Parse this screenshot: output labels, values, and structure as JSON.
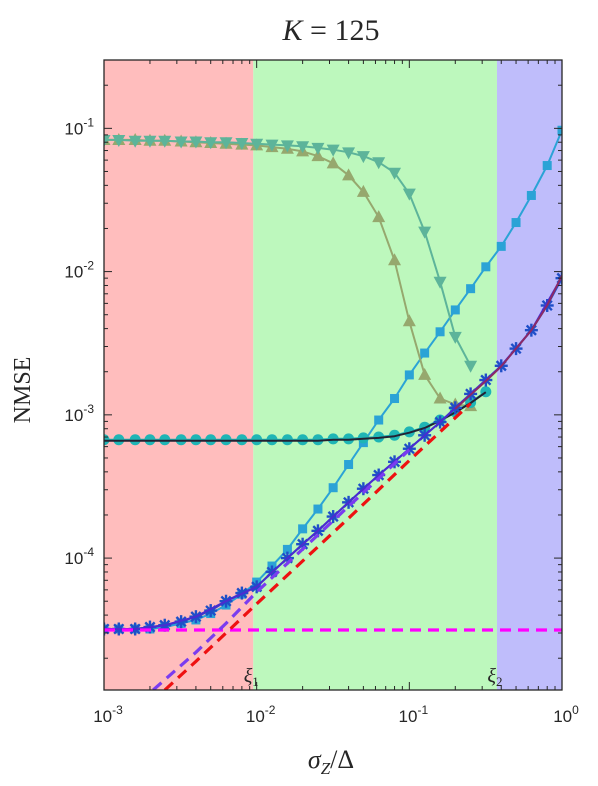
{
  "chart_data": {
    "type": "line",
    "title": "K = 125",
    "xlabel": "σZ/Δ",
    "ylabel": "NMSE",
    "x_scale": "log",
    "y_scale": "log",
    "xlim": [
      0.001,
      1
    ],
    "ylim": [
      1.2e-05,
      0.3
    ],
    "x_ticks": [
      {
        "value": 0.001,
        "base": "10",
        "exp": "-3"
      },
      {
        "value": 0.01,
        "base": "10",
        "exp": "-2"
      },
      {
        "value": 0.1,
        "base": "10",
        "exp": "-1"
      },
      {
        "value": 1,
        "base": "10",
        "exp": "0"
      }
    ],
    "y_ticks": [
      {
        "value": 0.0001,
        "base": "10",
        "exp": "-4"
      },
      {
        "value": 0.001,
        "base": "10",
        "exp": "-3"
      },
      {
        "value": 0.01,
        "base": "10",
        "exp": "-2"
      },
      {
        "value": 0.1,
        "base": "10",
        "exp": "-1"
      }
    ],
    "regions": [
      {
        "from": 0.001,
        "to": 0.0095,
        "color": "#ffbdbd"
      },
      {
        "from": 0.0095,
        "to": 0.375,
        "color": "#bdf8bd"
      },
      {
        "from": 0.375,
        "to": 1,
        "color": "#bfbdfb"
      }
    ],
    "annotations": [
      {
        "text": "ξ",
        "sub": "1",
        "x": 0.0095
      },
      {
        "text": "ξ",
        "sub": "2",
        "x": 0.375
      }
    ],
    "grid": false,
    "legend": "none",
    "series": [
      {
        "color": "#2ba3d6",
        "marker": "square",
        "line": "solid",
        "x": [
          0.001,
          0.00125,
          0.0016,
          0.002,
          0.0025,
          0.0032,
          0.004,
          0.005,
          0.0063,
          0.008,
          0.01,
          0.0126,
          0.0159,
          0.02,
          0.0252,
          0.0317,
          0.04,
          0.05,
          0.063,
          0.08,
          0.1,
          0.126,
          0.159,
          0.2,
          0.252,
          0.317,
          0.4,
          0.5,
          0.63,
          0.8,
          1.0
        ],
        "y": [
          3.2e-05,
          3.2e-05,
          3.2e-05,
          3.2e-05,
          3.3e-05,
          3.5e-05,
          3.7e-05,
          4.1e-05,
          4.7e-05,
          5.6e-05,
          6.8e-05,
          8.8e-05,
          0.000115,
          0.00016,
          0.00022,
          0.00031,
          0.00045,
          0.00064,
          0.00092,
          0.0013,
          0.0019,
          0.0027,
          0.0038,
          0.0054,
          0.0076,
          0.0108,
          0.015,
          0.022,
          0.034,
          0.055,
          0.097
        ]
      },
      {
        "color": "#96a86e",
        "marker": "triangle-up",
        "line": "solid",
        "x": [
          0.001,
          0.00125,
          0.0016,
          0.002,
          0.0025,
          0.0032,
          0.004,
          0.005,
          0.0063,
          0.008,
          0.01,
          0.0126,
          0.0159,
          0.02,
          0.0252,
          0.0317,
          0.04,
          0.05,
          0.063,
          0.08,
          0.1,
          0.126,
          0.159,
          0.2,
          0.252
        ],
        "y": [
          0.083,
          0.083,
          0.083,
          0.082,
          0.082,
          0.081,
          0.08,
          0.079,
          0.078,
          0.077,
          0.076,
          0.074,
          0.072,
          0.069,
          0.064,
          0.057,
          0.047,
          0.036,
          0.024,
          0.012,
          0.0045,
          0.0019,
          0.0013,
          0.00118,
          0.00115
        ]
      },
      {
        "color": "#5db49a",
        "marker": "triangle-down",
        "line": "solid",
        "x": [
          0.001,
          0.00125,
          0.0016,
          0.002,
          0.0025,
          0.0032,
          0.004,
          0.005,
          0.0063,
          0.008,
          0.01,
          0.0126,
          0.0159,
          0.02,
          0.0252,
          0.0317,
          0.04,
          0.05,
          0.063,
          0.08,
          0.1,
          0.126,
          0.159,
          0.2,
          0.252
        ],
        "y": [
          0.083,
          0.083,
          0.082,
          0.082,
          0.082,
          0.081,
          0.081,
          0.08,
          0.08,
          0.079,
          0.078,
          0.077,
          0.076,
          0.075,
          0.073,
          0.071,
          0.068,
          0.064,
          0.058,
          0.049,
          0.035,
          0.019,
          0.0085,
          0.0035,
          0.0022
        ]
      },
      {
        "color": "#1fb5b5",
        "marker": "circle",
        "line": "solid",
        "x": [
          0.001,
          0.00125,
          0.0016,
          0.002,
          0.0025,
          0.0032,
          0.004,
          0.005,
          0.0063,
          0.008,
          0.01,
          0.0126,
          0.0159,
          0.02,
          0.0252,
          0.0317,
          0.04,
          0.05,
          0.063,
          0.08,
          0.1,
          0.126,
          0.159,
          0.2,
          0.252,
          0.317
        ],
        "y": [
          0.00067,
          0.00067,
          0.00067,
          0.00067,
          0.00067,
          0.00067,
          0.00067,
          0.00067,
          0.00067,
          0.00067,
          0.00067,
          0.00067,
          0.00067,
          0.00067,
          0.00067,
          0.00068,
          0.00068,
          0.00069,
          0.0007,
          0.00072,
          0.00076,
          0.00082,
          0.00092,
          0.00105,
          0.00122,
          0.00145
        ]
      },
      {
        "color": "#222233",
        "marker": "none",
        "line": "solid",
        "x": [
          0.001,
          0.00125,
          0.0016,
          0.002,
          0.0025,
          0.0032,
          0.004,
          0.005,
          0.0063,
          0.008,
          0.01,
          0.0126,
          0.0159,
          0.02,
          0.0252,
          0.0317,
          0.04,
          0.05,
          0.063,
          0.08,
          0.1,
          0.126,
          0.159,
          0.2,
          0.252,
          0.317
        ],
        "y": [
          0.00066,
          0.00066,
          0.00066,
          0.00066,
          0.00066,
          0.00066,
          0.00066,
          0.00066,
          0.00066,
          0.00066,
          0.00066,
          0.00066,
          0.00066,
          0.00066,
          0.00066,
          0.00067,
          0.00067,
          0.00068,
          0.00069,
          0.00071,
          0.00075,
          0.00081,
          0.00091,
          0.00104,
          0.00121,
          0.00144
        ]
      },
      {
        "color": "#1f4fc8",
        "marker": "star",
        "line": "solid",
        "x": [
          0.001,
          0.00125,
          0.0016,
          0.002,
          0.0025,
          0.0032,
          0.004,
          0.005,
          0.0063,
          0.008,
          0.01,
          0.0126,
          0.0159,
          0.02,
          0.0252,
          0.0317,
          0.04,
          0.05,
          0.063,
          0.08,
          0.1,
          0.126,
          0.159,
          0.2,
          0.252,
          0.317,
          0.4,
          0.5,
          0.63,
          0.8,
          1.0
        ],
        "y": [
          3.2e-05,
          3.2e-05,
          3.2e-05,
          3.3e-05,
          3.4e-05,
          3.6e-05,
          3.9e-05,
          4.3e-05,
          5e-05,
          5.7e-05,
          6.3e-05,
          8e-05,
          0.0001,
          0.000125,
          0.000155,
          0.000195,
          0.000245,
          0.000305,
          0.00038,
          0.00047,
          0.00058,
          0.00072,
          0.00089,
          0.00112,
          0.0014,
          0.00175,
          0.0022,
          0.0029,
          0.0039,
          0.0058,
          0.009
        ]
      },
      {
        "color": "#4b2bd0",
        "marker": "none",
        "line": "solid",
        "x": [
          0.001,
          0.0016,
          0.0025,
          0.004,
          0.0063,
          0.01,
          0.0159,
          0.0252,
          0.04,
          0.063,
          0.1,
          0.159,
          0.252,
          0.4,
          0.63,
          1.0
        ],
        "y": [
          3.2e-05,
          3.2e-05,
          3.4e-05,
          3.9e-05,
          5e-05,
          6.3e-05,
          0.0001,
          0.000155,
          0.000245,
          0.00038,
          0.00058,
          0.00089,
          0.0014,
          0.0022,
          0.0039,
          0.0092
        ]
      },
      {
        "color": "#8b2a66",
        "marker": "none",
        "line": "solid",
        "x": [
          0.2,
          0.252,
          0.317,
          0.4,
          0.5,
          0.63,
          0.8,
          1.0
        ],
        "y": [
          0.0011,
          0.00138,
          0.00172,
          0.00218,
          0.0029,
          0.0039,
          0.0058,
          0.0094
        ]
      },
      {
        "color": "#ff00ff",
        "marker": "none",
        "line": "dashed",
        "x": [
          0.001,
          1.0
        ],
        "y": [
          3.15e-05,
          3.15e-05
        ]
      },
      {
        "color": "#7a3cf0",
        "marker": "none",
        "line": "dashed",
        "x": [
          0.0021,
          0.004,
          0.0063,
          0.01,
          0.0159,
          0.0252,
          0.04,
          0.063,
          0.1
        ],
        "y": [
          1.2e-05,
          2.2e-05,
          3.5e-05,
          5.8e-05,
          9.2e-05,
          0.000145,
          0.00023,
          0.00036,
          0.00057
        ]
      },
      {
        "color": "#ee1111",
        "marker": "none",
        "line": "dashed",
        "x": [
          0.0025,
          0.004,
          0.0063,
          0.01,
          0.0159,
          0.0252,
          0.04,
          0.063,
          0.1,
          0.159,
          0.252
        ],
        "y": [
          1.2e-05,
          1.9e-05,
          3e-05,
          4.8e-05,
          7.6e-05,
          0.00012,
          0.00019,
          0.0003,
          0.00048,
          0.00076,
          0.0012
        ]
      }
    ]
  }
}
